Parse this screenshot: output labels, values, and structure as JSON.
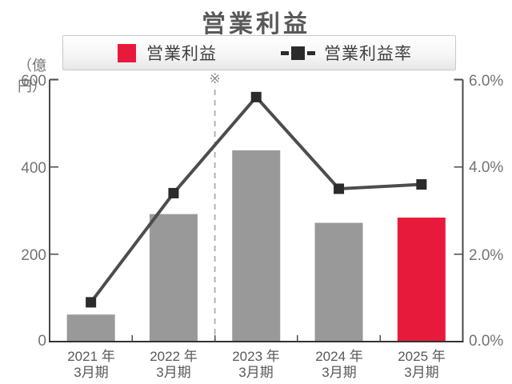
{
  "title": "営業利益",
  "legend": {
    "items": [
      {
        "label": "営業利益",
        "swatch": "red-square",
        "color": "#e81a3c"
      },
      {
        "label": "営業利益率",
        "swatch": "dash-square-dash-line",
        "color": "#2b2b2b"
      }
    ]
  },
  "axes": {
    "left": {
      "unit": "（億円）",
      "ticks": [
        "600",
        "400",
        "200",
        "0"
      ]
    },
    "right": {
      "ticks": [
        "6.0%",
        "4.0%",
        "2.0%",
        "0.0%"
      ]
    }
  },
  "annotation": {
    "symbol": "※",
    "position": "dashed vertical divider between 2022年3月期 and 2023年3月期"
  },
  "colors": {
    "bar_default": "#999999",
    "bar_highlight": "#e81a3c",
    "line": "#4d4d4d",
    "marker": "#2b2b2b",
    "axis": "#4a4a4a",
    "baseline": "#333333",
    "divider": "#b3b3b3"
  },
  "chart_data": {
    "type": "bar",
    "combo": "bar+line",
    "title": "営業利益",
    "categories": [
      "2021年3月期",
      "2022年3月期",
      "2023年3月期",
      "2024年3月期",
      "2025年3月期"
    ],
    "category_lines": [
      [
        "2021 年",
        "3月期"
      ],
      [
        "2022 年",
        "3月期"
      ],
      [
        "2023 年",
        "3月期"
      ],
      [
        "2024 年",
        "3月期"
      ],
      [
        "2025 年",
        "3月期"
      ]
    ],
    "series": [
      {
        "name": "営業利益",
        "type": "bar",
        "unit": "億円",
        "axis": "left",
        "values": [
          62,
          292,
          438,
          272,
          284
        ],
        "colors": [
          "#999999",
          "#999999",
          "#999999",
          "#999999",
          "#e81a3c"
        ]
      },
      {
        "name": "営業利益率",
        "type": "line",
        "unit": "%",
        "axis": "right",
        "values": [
          0.9,
          3.4,
          5.6,
          3.5,
          3.6
        ]
      }
    ],
    "left_ylabel": "（億円）",
    "left_ylim": [
      0,
      600
    ],
    "left_tick_step": 200,
    "right_ylim": [
      0,
      6.0
    ],
    "right_tick_step": 2.0,
    "grid": false,
    "legend_position": "top",
    "divider_after_category_index": 1
  }
}
